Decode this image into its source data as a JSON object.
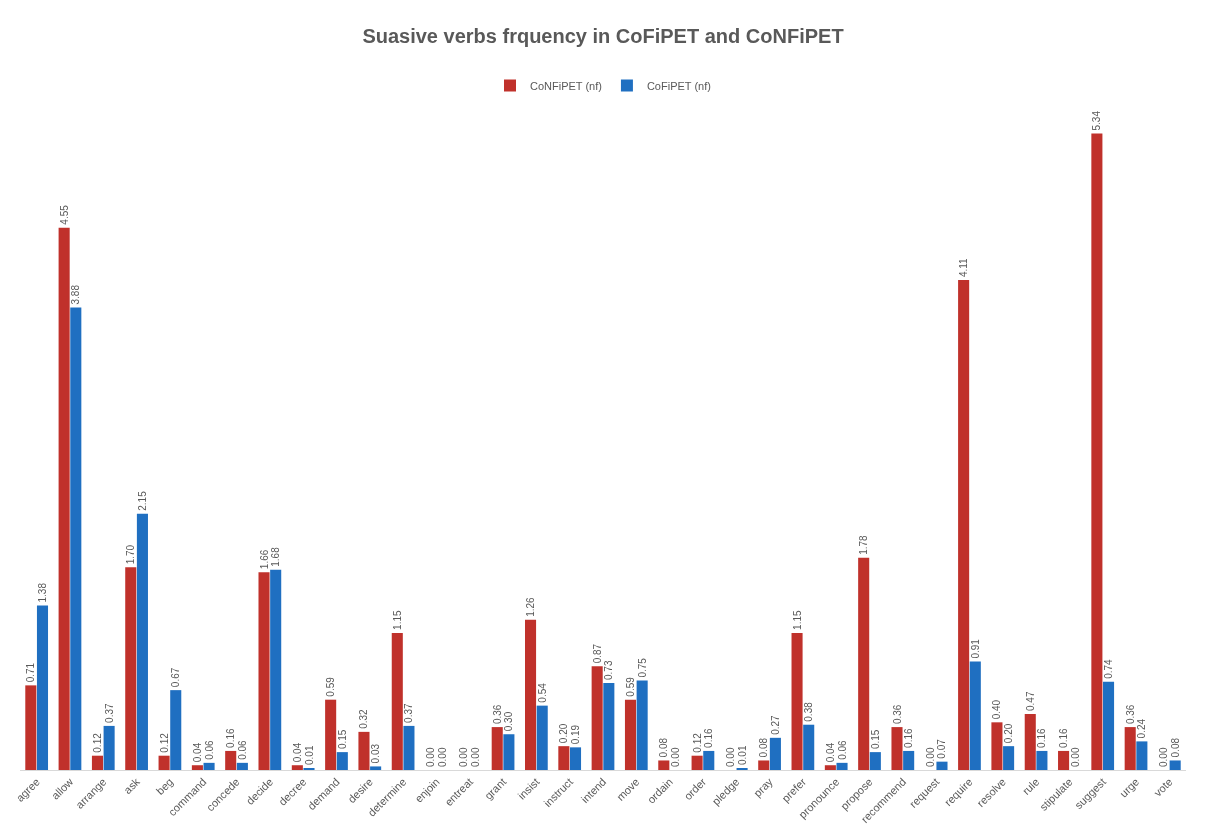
{
  "chart_data": {
    "type": "bar",
    "title": "Suasive verbs frquency in CoFiPET and CoNFiPET",
    "legend": "top",
    "categories": [
      "agree",
      "allow",
      "arrange",
      "ask",
      "beg",
      "command",
      "concede",
      "decide",
      "decree",
      "demand",
      "desire",
      "determine",
      "enjoin",
      "entreat",
      "grant",
      "insist",
      "instruct",
      "intend",
      "move",
      "ordain",
      "order",
      "pledge",
      "pray",
      "prefer",
      "pronounce",
      "propose",
      "recommend",
      "request",
      "require",
      "resolve",
      "rule",
      "stipulate",
      "suggest",
      "urge",
      "vote"
    ],
    "series": [
      {
        "name": "CoNFiPET (nf)",
        "color": "#c0312b",
        "values": [
          0.71,
          4.55,
          0.12,
          1.7,
          0.12,
          0.04,
          0.16,
          1.66,
          0.04,
          0.59,
          0.32,
          1.15,
          0.0,
          0.0,
          0.36,
          1.26,
          0.2,
          0.87,
          0.59,
          0.08,
          0.12,
          0.0,
          0.08,
          1.15,
          0.04,
          1.78,
          0.36,
          0.0,
          4.11,
          0.4,
          0.47,
          0.16,
          5.34,
          0.36,
          0.0
        ],
        "value_labels": [
          "0.71",
          "4.55",
          "0.12",
          "1.70",
          "0.12",
          "0.04",
          "0.16",
          "1.66",
          "0.04",
          "0.59",
          "0.32",
          "1.15",
          "0.00",
          "0.00",
          "0.36",
          "1.26",
          "0.20",
          "0.87",
          "0.59",
          "0.08",
          "0.12",
          "0.00",
          "0.08",
          "1.15",
          "0.04",
          "1.78",
          "0.36",
          "0.00",
          "4.11",
          "0.40",
          "0.47",
          "0.16",
          "5.34",
          "0.36",
          "0.00"
        ]
      },
      {
        "name": "CoFiPET (nf)",
        "color": "#1f6fc1",
        "values": [
          1.38,
          3.88,
          0.37,
          2.15,
          0.67,
          0.06,
          0.06,
          1.68,
          0.01,
          0.15,
          0.03,
          0.37,
          0.0,
          0.0,
          0.3,
          0.54,
          0.19,
          0.73,
          0.75,
          0.0,
          0.16,
          0.01,
          0.27,
          0.38,
          0.06,
          0.15,
          0.16,
          0.07,
          0.91,
          0.2,
          0.16,
          0.0,
          0.74,
          0.24,
          0.08
        ],
        "value_labels": [
          "1.38",
          "3.88",
          "0.37",
          "2.15",
          "0.67",
          "0.06",
          "0.06",
          "1.68",
          "0.01",
          "0.15",
          "0.03",
          "0.37",
          "0.00",
          "0.00",
          "0.30",
          "0.54",
          "0.19",
          "0.73",
          "0.75",
          "0.00",
          "0.16",
          "0.01",
          "0.27",
          "0.38",
          "0.06",
          "0.15",
          "0.16",
          "0.07",
          "0.91",
          "0.20",
          "0.16",
          "0.00",
          "0.74",
          "0.24",
          "0.08"
        ]
      }
    ]
  }
}
